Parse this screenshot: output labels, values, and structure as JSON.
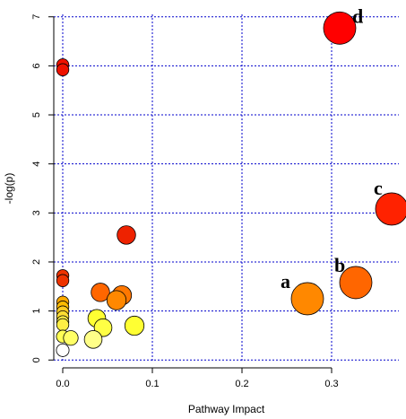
{
  "chart_data": {
    "type": "scatter",
    "title": "",
    "xlabel": "Pathway Impact",
    "ylabel": "-log(p)",
    "xlim": [
      -0.01,
      0.375
    ],
    "ylim": [
      -0.05,
      7.05
    ],
    "xticks": [
      0.0,
      0.1,
      0.2,
      0.3
    ],
    "xtick_labels": [
      "0.0",
      "0.1",
      "0.2",
      "0.3"
    ],
    "yticks": [
      0,
      1,
      2,
      3,
      4,
      5,
      6,
      7
    ],
    "ytick_labels": [
      "0",
      "1",
      "2",
      "3",
      "4",
      "5",
      "6",
      "7"
    ],
    "grid": true,
    "grid_color": "#0000cc",
    "points": [
      {
        "x": 0.309,
        "y": 6.77,
        "size": 1.0,
        "color": "#ff0000",
        "label": "d"
      },
      {
        "x": 0.367,
        "y": 3.08,
        "size": 1.0,
        "color": "#ff2200",
        "label": "c"
      },
      {
        "x": 0.327,
        "y": 1.58,
        "size": 1.0,
        "color": "#ff6600",
        "label": "b"
      },
      {
        "x": 0.273,
        "y": 1.25,
        "size": 1.0,
        "color": "#ff8800",
        "label": "a"
      },
      {
        "x": 0.0,
        "y": 6.02,
        "size": 0.2,
        "color": "#ee1100",
        "label": ""
      },
      {
        "x": 0.0,
        "y": 5.92,
        "size": 0.2,
        "color": "#ee1100",
        "label": ""
      },
      {
        "x": 0.071,
        "y": 2.55,
        "size": 0.45,
        "color": "#ee2200",
        "label": ""
      },
      {
        "x": 0.0,
        "y": 1.72,
        "size": 0.2,
        "color": "#ee3300",
        "label": ""
      },
      {
        "x": 0.0,
        "y": 1.62,
        "size": 0.2,
        "color": "#ee3300",
        "label": ""
      },
      {
        "x": 0.042,
        "y": 1.38,
        "size": 0.45,
        "color": "#ff6600",
        "label": ""
      },
      {
        "x": 0.066,
        "y": 1.32,
        "size": 0.48,
        "color": "#ff7700",
        "label": ""
      },
      {
        "x": 0.06,
        "y": 1.22,
        "size": 0.48,
        "color": "#ff8800",
        "label": ""
      },
      {
        "x": 0.0,
        "y": 1.18,
        "size": 0.2,
        "color": "#ffaa00",
        "label": ""
      },
      {
        "x": 0.0,
        "y": 1.08,
        "size": 0.2,
        "color": "#ffbb00",
        "label": ""
      },
      {
        "x": 0.0,
        "y": 0.98,
        "size": 0.2,
        "color": "#ffcc22",
        "label": ""
      },
      {
        "x": 0.0,
        "y": 0.88,
        "size": 0.2,
        "color": "#ffdd33",
        "label": ""
      },
      {
        "x": 0.0,
        "y": 0.78,
        "size": 0.2,
        "color": "#ffee44",
        "label": ""
      },
      {
        "x": 0.0,
        "y": 0.72,
        "size": 0.2,
        "color": "#ffee44",
        "label": ""
      },
      {
        "x": 0.038,
        "y": 0.85,
        "size": 0.42,
        "color": "#ffff33",
        "label": ""
      },
      {
        "x": 0.08,
        "y": 0.7,
        "size": 0.48,
        "color": "#ffff33",
        "label": ""
      },
      {
        "x": 0.045,
        "y": 0.66,
        "size": 0.42,
        "color": "#ffff44",
        "label": ""
      },
      {
        "x": 0.0,
        "y": 0.48,
        "size": 0.22,
        "color": "#ffff55",
        "label": ""
      },
      {
        "x": 0.009,
        "y": 0.45,
        "size": 0.3,
        "color": "#ffff66",
        "label": ""
      },
      {
        "x": 0.034,
        "y": 0.42,
        "size": 0.42,
        "color": "#ffff88",
        "label": ""
      },
      {
        "x": 0.0,
        "y": 0.2,
        "size": 0.22,
        "color": "#ffffff",
        "label": ""
      }
    ]
  }
}
